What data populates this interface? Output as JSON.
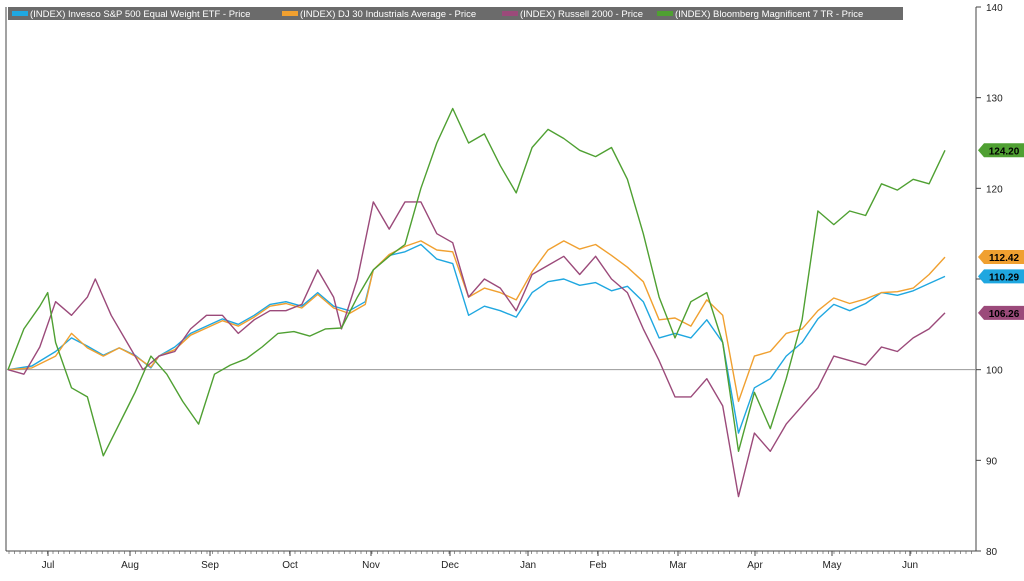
{
  "chart_data": {
    "type": "line",
    "title": "",
    "xlabel": "",
    "ylabel": "",
    "ylim": [
      80,
      140
    ],
    "y_ticks": [
      80,
      90,
      100,
      110,
      120,
      130,
      140
    ],
    "baseline": 100,
    "grid": false,
    "legend_position": "top-left",
    "x_months": [
      "Jul",
      "Aug",
      "Sep",
      "Oct",
      "Nov",
      "Dec",
      "Jan",
      "Feb",
      "Mar",
      "Apr",
      "May",
      "Jun"
    ],
    "x_ticks": [
      1,
      2,
      3,
      4,
      5,
      6,
      7,
      8,
      9,
      10,
      11,
      12
    ],
    "series": [
      {
        "name": "(INDEX) Invesco S&P 500 Equal Weight ETF - Price",
        "color": "#1fa7e0",
        "last_label": "110.29",
        "points": [
          [
            0,
            100
          ],
          [
            0.3,
            100.4
          ],
          [
            0.6,
            102
          ],
          [
            0.8,
            103.5
          ],
          [
            1.0,
            102.6
          ],
          [
            1.2,
            101.6
          ],
          [
            1.4,
            102.4
          ],
          [
            1.6,
            101.6
          ],
          [
            1.8,
            100.2
          ],
          [
            1.9,
            101.5
          ],
          [
            2.1,
            102.5
          ],
          [
            2.3,
            104
          ],
          [
            2.5,
            104.8
          ],
          [
            2.7,
            105.6
          ],
          [
            2.9,
            105
          ],
          [
            3.1,
            106
          ],
          [
            3.3,
            107.2
          ],
          [
            3.5,
            107.5
          ],
          [
            3.7,
            107
          ],
          [
            3.9,
            108.5
          ],
          [
            4.1,
            107
          ],
          [
            4.3,
            106.5
          ],
          [
            4.5,
            107.5
          ],
          [
            4.6,
            111
          ],
          [
            4.8,
            112.6
          ],
          [
            5.0,
            113
          ],
          [
            5.2,
            113.8
          ],
          [
            5.4,
            112.2
          ],
          [
            5.6,
            111.7
          ],
          [
            5.8,
            106
          ],
          [
            6.0,
            107
          ],
          [
            6.2,
            106.5
          ],
          [
            6.4,
            105.8
          ],
          [
            6.6,
            108.5
          ],
          [
            6.8,
            109.7
          ],
          [
            7.0,
            110
          ],
          [
            7.2,
            109.3
          ],
          [
            7.4,
            109.6
          ],
          [
            7.6,
            108.7
          ],
          [
            7.8,
            109.2
          ],
          [
            8.0,
            107.5
          ],
          [
            8.2,
            103.5
          ],
          [
            8.4,
            104
          ],
          [
            8.6,
            103.5
          ],
          [
            8.8,
            105.5
          ],
          [
            9.0,
            103
          ],
          [
            9.2,
            93
          ],
          [
            9.4,
            98
          ],
          [
            9.6,
            99
          ],
          [
            9.8,
            101.5
          ],
          [
            10.0,
            103
          ],
          [
            10.2,
            105.6
          ],
          [
            10.4,
            107.2
          ],
          [
            10.6,
            106.5
          ],
          [
            10.8,
            107.3
          ],
          [
            11.0,
            108.5
          ],
          [
            11.2,
            108.2
          ],
          [
            11.4,
            108.7
          ],
          [
            11.6,
            109.5
          ],
          [
            11.8,
            110.29
          ]
        ]
      },
      {
        "name": "(INDEX) DJ 30 Industrials Average - Price",
        "color": "#f0a030",
        "last_label": "112.42",
        "points": [
          [
            0,
            100
          ],
          [
            0.3,
            100.2
          ],
          [
            0.6,
            101.5
          ],
          [
            0.8,
            104
          ],
          [
            1.0,
            102.4
          ],
          [
            1.2,
            101.5
          ],
          [
            1.4,
            102.4
          ],
          [
            1.6,
            101.5
          ],
          [
            1.8,
            100.3
          ],
          [
            1.9,
            101.5
          ],
          [
            2.1,
            102.2
          ],
          [
            2.3,
            103.8
          ],
          [
            2.5,
            104.6
          ],
          [
            2.7,
            105.4
          ],
          [
            2.9,
            104.8
          ],
          [
            3.1,
            105.8
          ],
          [
            3.3,
            107
          ],
          [
            3.5,
            107.3
          ],
          [
            3.7,
            106.8
          ],
          [
            3.9,
            108.3
          ],
          [
            4.1,
            106.8
          ],
          [
            4.3,
            106.2
          ],
          [
            4.5,
            107.2
          ],
          [
            4.6,
            111
          ],
          [
            4.8,
            112.7
          ],
          [
            5.0,
            113.6
          ],
          [
            5.2,
            114.2
          ],
          [
            5.4,
            113.2
          ],
          [
            5.6,
            113
          ],
          [
            5.8,
            108
          ],
          [
            6.0,
            109
          ],
          [
            6.2,
            108.5
          ],
          [
            6.4,
            107.7
          ],
          [
            6.6,
            110.8
          ],
          [
            6.8,
            113.2
          ],
          [
            7.0,
            114.2
          ],
          [
            7.2,
            113.3
          ],
          [
            7.4,
            113.8
          ],
          [
            7.6,
            112.6
          ],
          [
            7.8,
            111.3
          ],
          [
            8.0,
            109.7
          ],
          [
            8.2,
            105.5
          ],
          [
            8.4,
            105.7
          ],
          [
            8.6,
            104.8
          ],
          [
            8.8,
            107.7
          ],
          [
            9.0,
            106
          ],
          [
            9.2,
            96.5
          ],
          [
            9.4,
            101.5
          ],
          [
            9.6,
            102
          ],
          [
            9.8,
            104
          ],
          [
            10.0,
            104.5
          ],
          [
            10.2,
            106.5
          ],
          [
            10.4,
            107.9
          ],
          [
            10.6,
            107.3
          ],
          [
            10.8,
            107.8
          ],
          [
            11.0,
            108.5
          ],
          [
            11.2,
            108.6
          ],
          [
            11.4,
            109
          ],
          [
            11.6,
            110.5
          ],
          [
            11.8,
            112.42
          ]
        ]
      },
      {
        "name": "(INDEX) Russell 2000 - Price",
        "color": "#9b4a7a",
        "last_label": "106.26",
        "points": [
          [
            0,
            100
          ],
          [
            0.2,
            99.5
          ],
          [
            0.4,
            102.5
          ],
          [
            0.6,
            107.5
          ],
          [
            0.8,
            106
          ],
          [
            1.0,
            108
          ],
          [
            1.1,
            110
          ],
          [
            1.3,
            106
          ],
          [
            1.5,
            103
          ],
          [
            1.7,
            100
          ],
          [
            1.9,
            101.5
          ],
          [
            2.1,
            102
          ],
          [
            2.3,
            104.5
          ],
          [
            2.5,
            106
          ],
          [
            2.7,
            106
          ],
          [
            2.9,
            104
          ],
          [
            3.1,
            105.5
          ],
          [
            3.3,
            106.5
          ],
          [
            3.5,
            106.5
          ],
          [
            3.7,
            107.2
          ],
          [
            3.9,
            111
          ],
          [
            4.1,
            108
          ],
          [
            4.2,
            104.5
          ],
          [
            4.4,
            110
          ],
          [
            4.6,
            118.5
          ],
          [
            4.8,
            115.5
          ],
          [
            5.0,
            118.5
          ],
          [
            5.2,
            118.5
          ],
          [
            5.4,
            115
          ],
          [
            5.6,
            114
          ],
          [
            5.8,
            108
          ],
          [
            6.0,
            110
          ],
          [
            6.2,
            109
          ],
          [
            6.4,
            106.5
          ],
          [
            6.6,
            110.5
          ],
          [
            6.8,
            111.5
          ],
          [
            7.0,
            112.5
          ],
          [
            7.2,
            110.5
          ],
          [
            7.4,
            112.5
          ],
          [
            7.6,
            110
          ],
          [
            7.8,
            108.5
          ],
          [
            8.0,
            104.5
          ],
          [
            8.2,
            101
          ],
          [
            8.4,
            97
          ],
          [
            8.6,
            97
          ],
          [
            8.8,
            99
          ],
          [
            9.0,
            96
          ],
          [
            9.2,
            86
          ],
          [
            9.4,
            93
          ],
          [
            9.6,
            91
          ],
          [
            9.8,
            94
          ],
          [
            10.0,
            96
          ],
          [
            10.2,
            98
          ],
          [
            10.4,
            101.5
          ],
          [
            10.6,
            101
          ],
          [
            10.8,
            100.5
          ],
          [
            11.0,
            102.5
          ],
          [
            11.2,
            102
          ],
          [
            11.4,
            103.5
          ],
          [
            11.6,
            104.5
          ],
          [
            11.8,
            106.26
          ]
        ]
      },
      {
        "name": "(INDEX) Bloomberg Magnificent 7 TR - Price",
        "color": "#4fa032",
        "last_label": "124.20",
        "points": [
          [
            0,
            100
          ],
          [
            0.2,
            104.5
          ],
          [
            0.4,
            107
          ],
          [
            0.5,
            108.5
          ],
          [
            0.6,
            103
          ],
          [
            0.8,
            98
          ],
          [
            1.0,
            97
          ],
          [
            1.2,
            90.5
          ],
          [
            1.4,
            94
          ],
          [
            1.6,
            97.5
          ],
          [
            1.8,
            101.5
          ],
          [
            2.0,
            99.5
          ],
          [
            2.2,
            96.5
          ],
          [
            2.4,
            94
          ],
          [
            2.6,
            99.5
          ],
          [
            2.8,
            100.5
          ],
          [
            3.0,
            101.2
          ],
          [
            3.2,
            102.5
          ],
          [
            3.4,
            104
          ],
          [
            3.6,
            104.2
          ],
          [
            3.8,
            103.7
          ],
          [
            4.0,
            104.5
          ],
          [
            4.2,
            104.6
          ],
          [
            4.4,
            108
          ],
          [
            4.6,
            111
          ],
          [
            4.8,
            112.5
          ],
          [
            5.0,
            113.8
          ],
          [
            5.2,
            120
          ],
          [
            5.4,
            125
          ],
          [
            5.6,
            128.8
          ],
          [
            5.8,
            125
          ],
          [
            6.0,
            126
          ],
          [
            6.2,
            122.5
          ],
          [
            6.4,
            119.5
          ],
          [
            6.6,
            124.5
          ],
          [
            6.8,
            126.5
          ],
          [
            7.0,
            125.5
          ],
          [
            7.2,
            124.2
          ],
          [
            7.4,
            123.5
          ],
          [
            7.6,
            124.5
          ],
          [
            7.8,
            121
          ],
          [
            8.0,
            115
          ],
          [
            8.2,
            108
          ],
          [
            8.4,
            103.5
          ],
          [
            8.6,
            107.5
          ],
          [
            8.8,
            108.5
          ],
          [
            9.0,
            103
          ],
          [
            9.2,
            91
          ],
          [
            9.4,
            97.5
          ],
          [
            9.6,
            93.5
          ],
          [
            9.8,
            99
          ],
          [
            10.0,
            105.5
          ],
          [
            10.2,
            117.5
          ],
          [
            10.4,
            116
          ],
          [
            10.6,
            117.5
          ],
          [
            10.8,
            117
          ],
          [
            11.0,
            120.5
          ],
          [
            11.2,
            119.8
          ],
          [
            11.4,
            121
          ],
          [
            11.6,
            120.5
          ],
          [
            11.8,
            124.2
          ]
        ]
      }
    ]
  }
}
